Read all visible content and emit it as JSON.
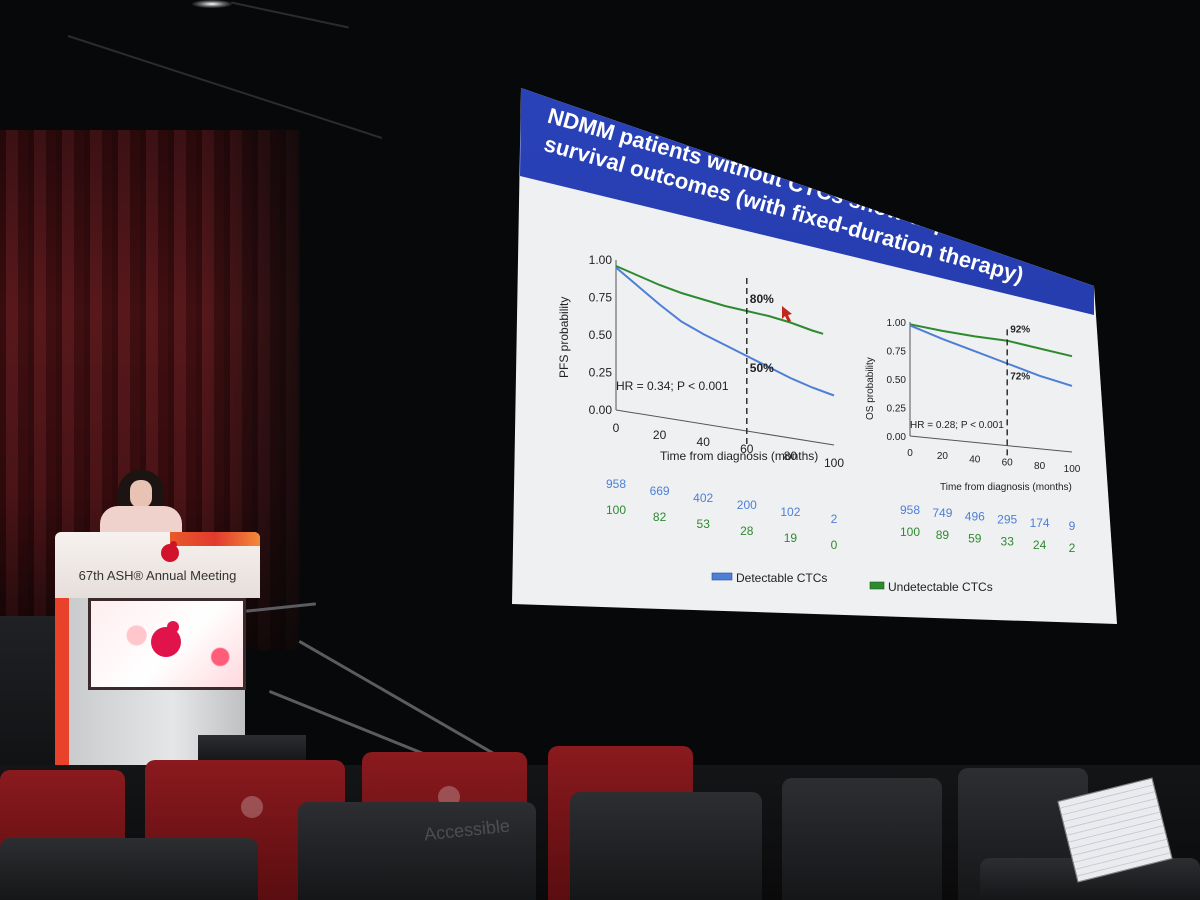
{
  "slide": {
    "title_line1": "NDMM patients without CTCs show unprecedented",
    "title_line2": "survival outcomes (with fixed-duration therapy)",
    "legend": {
      "detectable": "Detectable CTCs",
      "undetectable": "Undetectable CTCs"
    },
    "colors": {
      "header": "#1f35a3",
      "detectable": "#4e7fd6",
      "undetectable": "#2f8a2f",
      "background": "#eef0f2"
    }
  },
  "chart_data": [
    {
      "type": "line",
      "ylabel": "PFS probability",
      "xlabel": "Time from diagnosis (months)",
      "yticks": [
        "1.00",
        "0.75",
        "0.50",
        "0.25",
        "0.00"
      ],
      "xticks": [
        "0",
        "20",
        "40",
        "60",
        "80",
        "100"
      ],
      "xlim": [
        0,
        100
      ],
      "ylim": [
        0,
        1
      ],
      "hr_text": "HR = 0.34; P < 0.001",
      "marker_x": 60,
      "marker_labels": {
        "undetectable": "80%",
        "detectable": "50%"
      },
      "series": [
        {
          "key": "undetectable",
          "x": [
            0,
            10,
            20,
            30,
            40,
            50,
            60,
            70,
            80,
            90,
            95
          ],
          "y": [
            0.96,
            0.92,
            0.88,
            0.85,
            0.83,
            0.81,
            0.8,
            0.79,
            0.77,
            0.74,
            0.73
          ]
        },
        {
          "key": "detectable",
          "x": [
            0,
            10,
            20,
            30,
            40,
            50,
            60,
            70,
            80,
            90,
            100
          ],
          "y": [
            0.95,
            0.85,
            0.75,
            0.66,
            0.6,
            0.55,
            0.5,
            0.45,
            0.4,
            0.36,
            0.33
          ]
        }
      ],
      "risk_table": {
        "detectable": [
          "958",
          "669",
          "402",
          "200",
          "102",
          "2"
        ],
        "undetectable": [
          "100",
          "82",
          "53",
          "28",
          "19",
          "0"
        ]
      }
    },
    {
      "type": "line",
      "ylabel": "OS probability",
      "xlabel": "Time from diagnosis (months)",
      "yticks": [
        "1.00",
        "0.75",
        "0.50",
        "0.25",
        "0.00"
      ],
      "xticks": [
        "0",
        "20",
        "40",
        "60",
        "80",
        "100"
      ],
      "xlim": [
        0,
        100
      ],
      "ylim": [
        0,
        1
      ],
      "hr_text": "HR = 0.28; P < 0.001",
      "marker_x": 60,
      "marker_labels": {
        "undetectable": "92%",
        "detectable": "72%"
      },
      "series": [
        {
          "key": "undetectable",
          "x": [
            0,
            20,
            40,
            60,
            80,
            100
          ],
          "y": [
            0.98,
            0.95,
            0.93,
            0.92,
            0.88,
            0.84
          ]
        },
        {
          "key": "detectable",
          "x": [
            0,
            20,
            40,
            60,
            80,
            100
          ],
          "y": [
            0.97,
            0.88,
            0.8,
            0.72,
            0.64,
            0.58
          ]
        }
      ],
      "risk_table": {
        "detectable": [
          "958",
          "749",
          "496",
          "295",
          "174",
          "9"
        ],
        "undetectable": [
          "100",
          "89",
          "59",
          "33",
          "24",
          "2"
        ]
      }
    }
  ],
  "podium": {
    "label": "67th ASH® Annual Meeting"
  },
  "chair_text": "Accessible"
}
